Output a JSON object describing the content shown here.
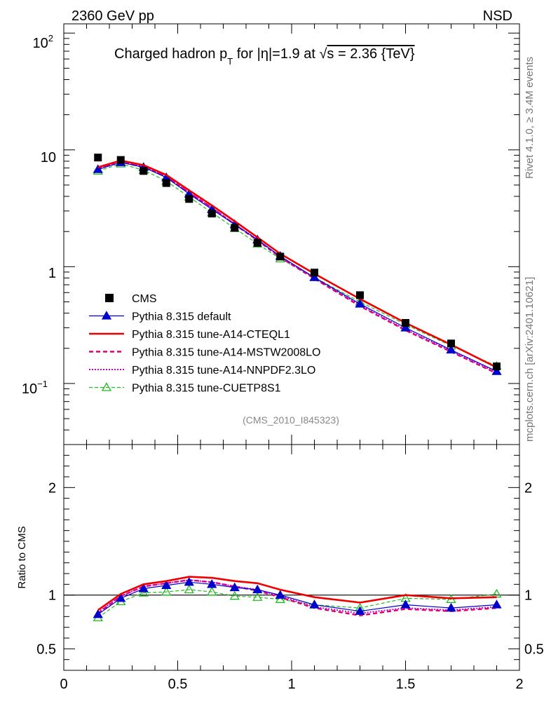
{
  "header": {
    "left": "2360 GeV pp",
    "right": "NSD"
  },
  "side": {
    "rivet": "Rivet 4.1.0, ≥ 3.4M events",
    "mcplots": "mcplots.cern.ch [arXiv:2401.10621]"
  },
  "chart_data": {
    "type": "line",
    "title": "Charged hadron p_T for |η|=1.9 at √s = 2.36 {TeV}",
    "title_parts": {
      "a": "Charged hadron p",
      "sub": "T",
      "b": " for |η|=1.9 at ",
      "sqrt": "√",
      "c": "s = 2.36 {TeV}"
    },
    "analysis": "(CMS_2010_I845323)",
    "xlim": [
      0,
      2
    ],
    "x_ticks": [
      "0",
      "0.5",
      "1",
      "1.5",
      "2"
    ],
    "main": {
      "yscale": "log",
      "ylim": [
        0.03,
        120
      ],
      "y_ticks": {
        "hundred_base": "10",
        "hundred_exp": "2",
        "ten": "10",
        "one": "1",
        "tenth_base": "10",
        "tenth_exp": "−1"
      }
    },
    "ratio": {
      "ylabel": "Ratio to CMS",
      "ylim": [
        0.3,
        2.4
      ],
      "y_ticks": [
        "0.5",
        "1",
        "2"
      ]
    },
    "x": [
      0.15,
      0.25,
      0.35,
      0.45,
      0.55,
      0.65,
      0.75,
      0.85,
      0.95,
      1.1,
      1.3,
      1.5,
      1.7,
      1.9
    ],
    "series": [
      {
        "name": "CMS",
        "color": "#000000",
        "style": "data",
        "values": [
          8.6,
          8.2,
          6.6,
          5.2,
          3.8,
          2.85,
          2.15,
          1.6,
          1.22,
          0.89,
          0.57,
          0.33,
          0.22,
          0.14
        ]
      },
      {
        "name": "Pythia 8.315 default",
        "color": "#0000cc",
        "style": "solid-thin",
        "marker": "triangle-filled",
        "values": [
          6.8,
          7.8,
          7.1,
          5.8,
          4.2,
          3.1,
          2.3,
          1.7,
          1.23,
          0.81,
          0.48,
          0.3,
          0.194,
          0.127
        ]
      },
      {
        "name": "Pythia 8.315 tune-A14-CTEQL1",
        "color": "#ee0000",
        "style": "solid-thick",
        "values": [
          7.1,
          8.1,
          7.4,
          6.1,
          4.5,
          3.35,
          2.45,
          1.78,
          1.29,
          0.87,
          0.53,
          0.33,
          0.215,
          0.137
        ]
      },
      {
        "name": "Pythia 8.315 tune-A14-MSTW2008LO",
        "color": "#e0006a",
        "style": "dashed",
        "values": [
          6.9,
          7.9,
          7.1,
          5.9,
          4.3,
          3.2,
          2.3,
          1.68,
          1.2,
          0.79,
          0.46,
          0.285,
          0.187,
          0.122
        ]
      },
      {
        "name": "Pythia 8.315 tune-A14-NNPDF2.3LO",
        "color": "#cc00cc",
        "style": "dotted",
        "values": [
          6.9,
          7.9,
          7.2,
          5.9,
          4.3,
          3.2,
          2.32,
          1.7,
          1.21,
          0.8,
          0.47,
          0.29,
          0.19,
          0.124
        ]
      },
      {
        "name": "Pythia 8.315 tune-CUETP8S1",
        "color": "#22bb22",
        "style": "dashed-thin",
        "marker": "triangle-open",
        "values": [
          6.6,
          7.6,
          6.7,
          5.4,
          3.95,
          2.9,
          2.13,
          1.57,
          1.17,
          0.81,
          0.5,
          0.32,
          0.21,
          0.141
        ]
      }
    ],
    "ratio_values": {
      "Pythia 8.315 default": [
        0.82,
        0.97,
        1.06,
        1.09,
        1.12,
        1.1,
        1.07,
        1.05,
        1.0,
        0.91,
        0.85,
        0.91,
        0.88,
        0.91
      ],
      "Pythia 8.315 tune-A14-CTEQL1": [
        0.86,
        1.01,
        1.1,
        1.13,
        1.17,
        1.16,
        1.13,
        1.11,
        1.05,
        0.98,
        0.93,
        1.0,
        0.97,
        0.98
      ],
      "Pythia 8.315 tune-A14-MSTW2008LO": [
        0.83,
        0.99,
        1.08,
        1.11,
        1.14,
        1.12,
        1.08,
        1.04,
        0.98,
        0.88,
        0.81,
        0.87,
        0.85,
        0.88
      ],
      "Pythia 8.315 tune-A14-NNPDF2.3LO": [
        0.84,
        0.99,
        1.08,
        1.11,
        1.14,
        1.12,
        1.08,
        1.05,
        0.99,
        0.89,
        0.83,
        0.88,
        0.86,
        0.89
      ],
      "Pythia 8.315 tune-CUETP8S1": [
        0.79,
        0.94,
        1.02,
        1.03,
        1.05,
        1.03,
        0.99,
        0.98,
        0.96,
        0.91,
        0.88,
        0.97,
        0.96,
        1.01
      ]
    }
  }
}
